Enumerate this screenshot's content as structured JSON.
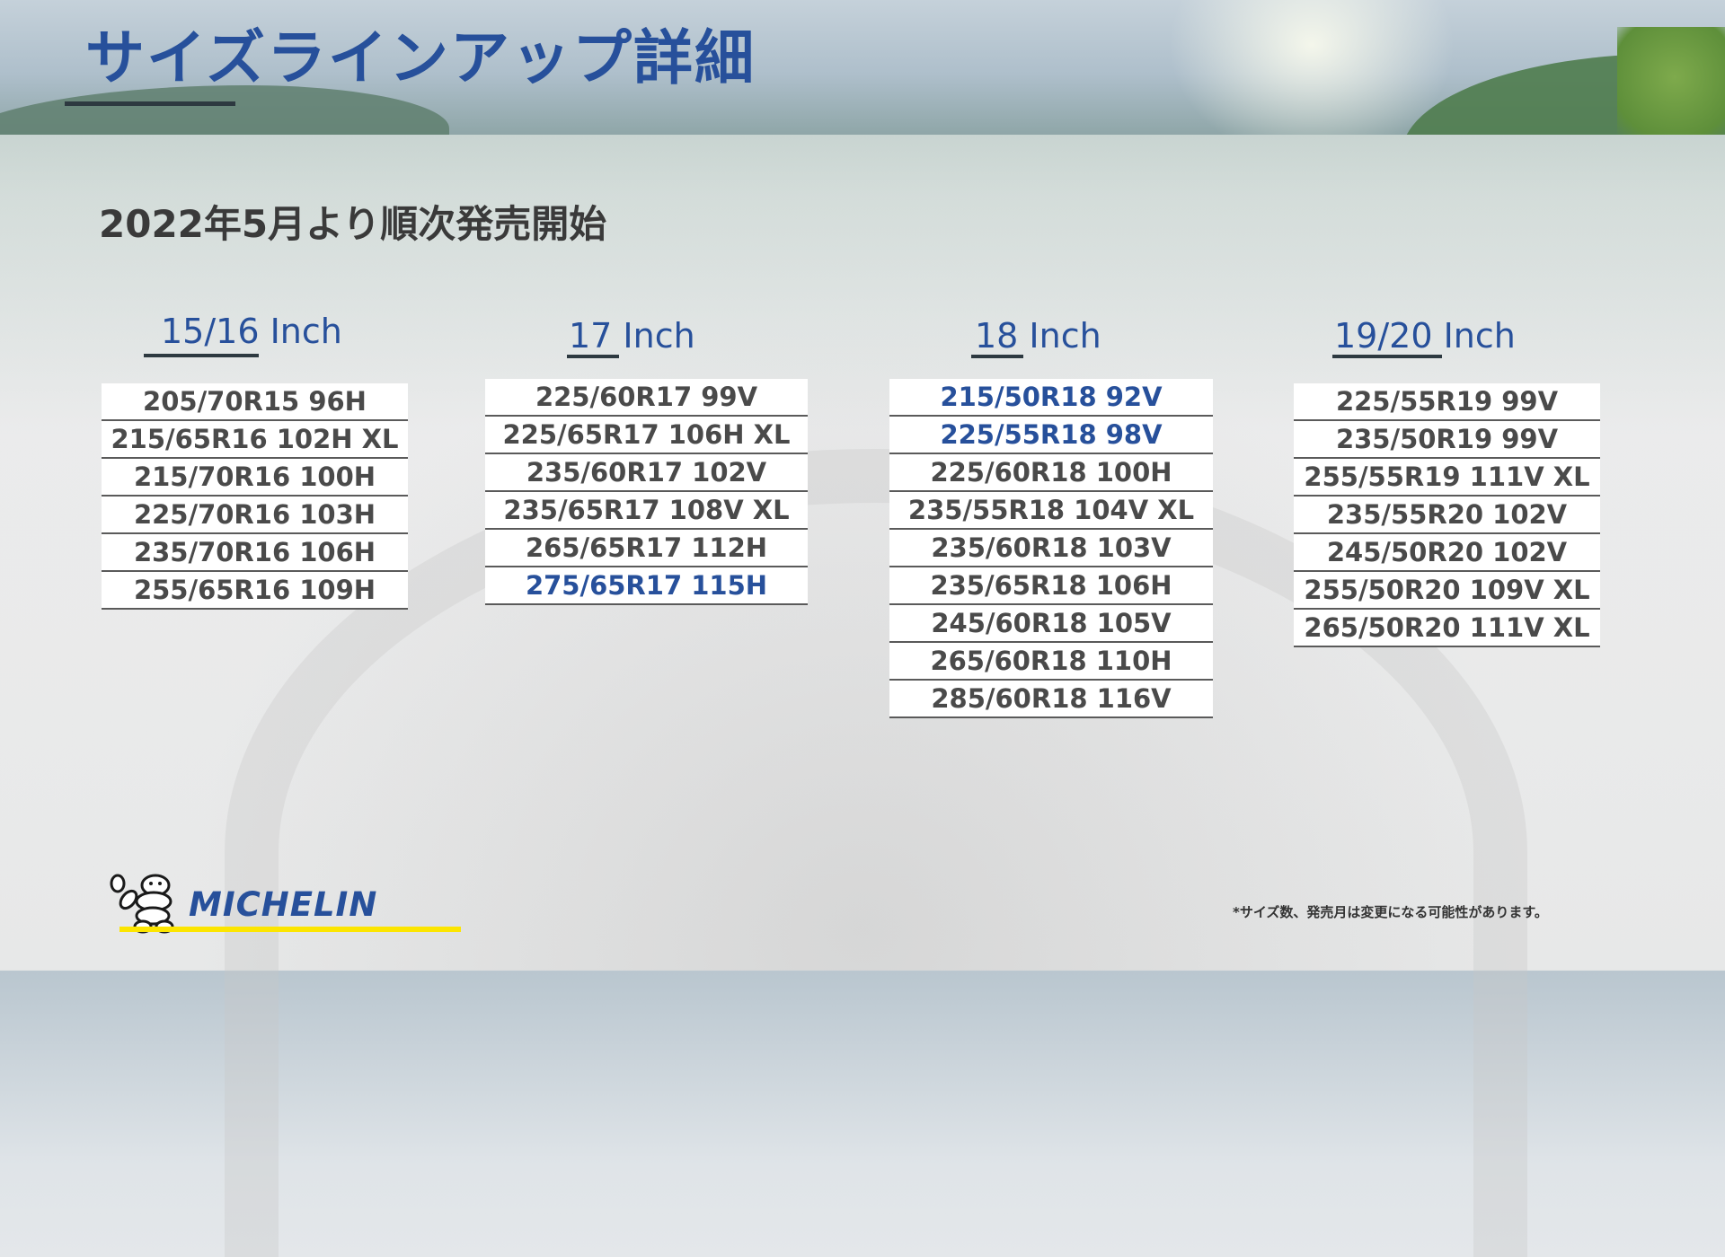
{
  "title": "サイズラインアップ詳細",
  "subtitle": "2022年5月より順次発売開始",
  "columns": [
    {
      "heading": "15/16 Inch",
      "sizes": [
        {
          "text": "205/70R15 96H",
          "highlight": false
        },
        {
          "text": "215/65R16 102H XL",
          "highlight": false
        },
        {
          "text": "215/70R16 100H",
          "highlight": false
        },
        {
          "text": "225/70R16 103H",
          "highlight": false
        },
        {
          "text": "235/70R16 106H",
          "highlight": false
        },
        {
          "text": "255/65R16 109H",
          "highlight": false
        }
      ]
    },
    {
      "heading": "17 Inch",
      "sizes": [
        {
          "text": "225/60R17 99V",
          "highlight": false
        },
        {
          "text": "225/65R17 106H XL",
          "highlight": false
        },
        {
          "text": "235/60R17 102V",
          "highlight": false
        },
        {
          "text": "235/65R17 108V XL",
          "highlight": false
        },
        {
          "text": "265/65R17 112H",
          "highlight": false
        },
        {
          "text": "275/65R17 115H",
          "highlight": true
        }
      ]
    },
    {
      "heading": "18 Inch",
      "sizes": [
        {
          "text": "215/50R18 92V",
          "highlight": true
        },
        {
          "text": "225/55R18 98V",
          "highlight": true
        },
        {
          "text": "225/60R18 100H",
          "highlight": false
        },
        {
          "text": "235/55R18 104V XL",
          "highlight": false
        },
        {
          "text": "235/60R18 103V",
          "highlight": false
        },
        {
          "text": "235/65R18 106H",
          "highlight": false
        },
        {
          "text": "245/60R18 105V",
          "highlight": false
        },
        {
          "text": "265/60R18 110H",
          "highlight": false
        },
        {
          "text": "285/60R18 116V",
          "highlight": false
        }
      ]
    },
    {
      "heading": "19/20 Inch",
      "sizes": [
        {
          "text": "225/55R19 99V",
          "highlight": false
        },
        {
          "text": "235/50R19 99V",
          "highlight": false
        },
        {
          "text": "255/55R19 111V XL",
          "highlight": false
        },
        {
          "text": "235/55R20 102V",
          "highlight": false
        },
        {
          "text": "245/50R20 102V",
          "highlight": false
        },
        {
          "text": "255/50R20 109V XL",
          "highlight": false
        },
        {
          "text": "265/50R20 111V XL",
          "highlight": false
        }
      ]
    }
  ],
  "brand": {
    "name": "MICHELIN",
    "mascot_icon": "michelin-man-icon"
  },
  "note": "*サイズ数、発売月は変更になる可能性があります。",
  "colors": {
    "accent": "#27509b",
    "text": "#4a4a4a",
    "brand_yellow": "#fce500"
  }
}
